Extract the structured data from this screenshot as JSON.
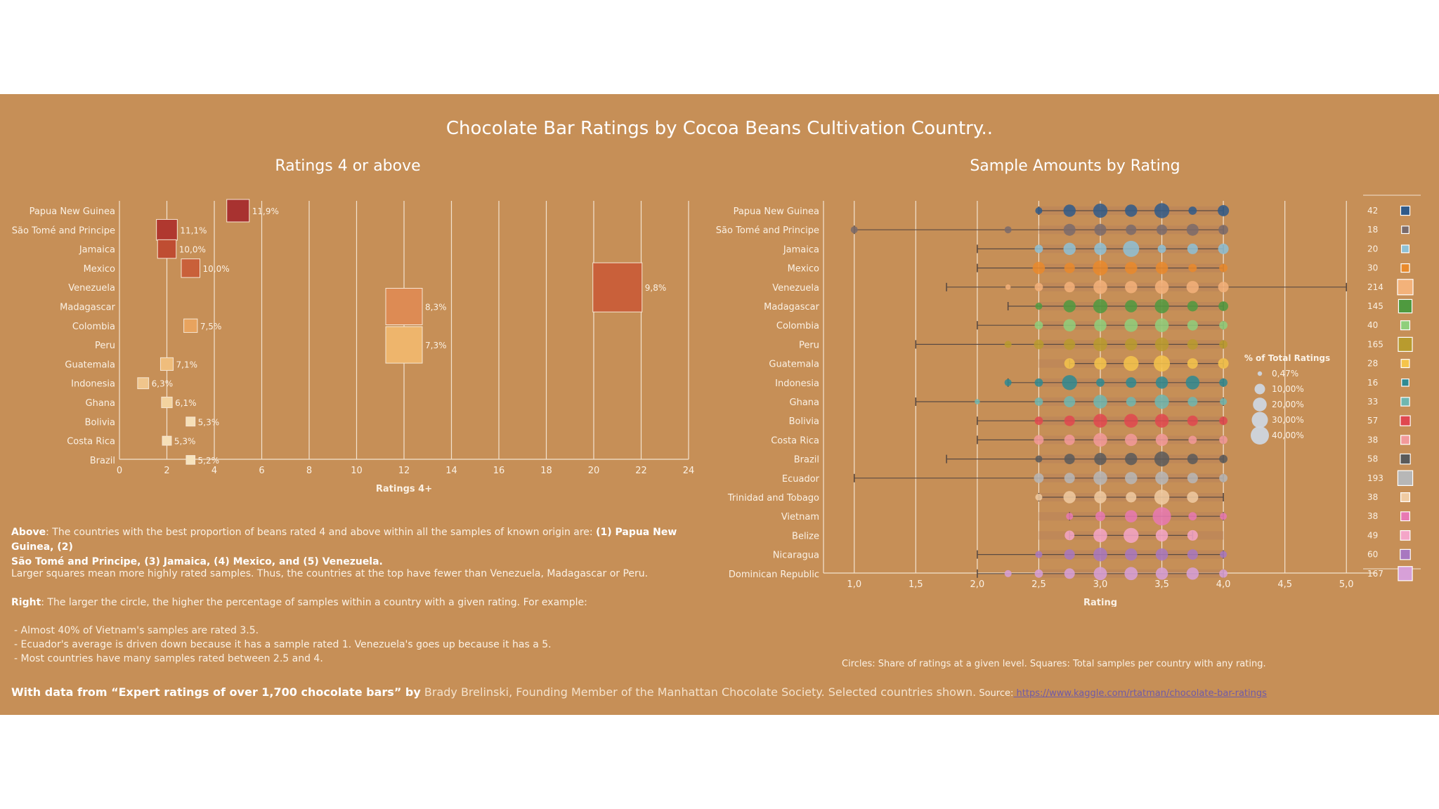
{
  "title": "Chocolate Bar Ratings by Cocoa Beans Cultivation Country..",
  "colors": {
    "background": "#c68f57",
    "grid": "#f3e3d0",
    "text": "#fbf1e4"
  },
  "chart_data": [
    {
      "type": "bar",
      "title": "Ratings 4 or above",
      "xlabel": "Ratings 4+",
      "ylabel": "",
      "xlim": [
        0,
        24
      ],
      "ticks": [
        "0",
        "2",
        "4",
        "6",
        "8",
        "10",
        "12",
        "14",
        "16",
        "18",
        "20",
        "22",
        "24"
      ],
      "grid": true,
      "categories": [
        "Papua New Guinea",
        "São Tomé and Principe",
        "Jamaica",
        "Mexico",
        "Venezuela",
        "Madagascar",
        "Colombia",
        "Peru",
        "Guatemala",
        "Indonesia",
        "Ghana",
        "Bolivia",
        "Costa Rica",
        "Brazil"
      ],
      "values": [
        5,
        2,
        2,
        3,
        21,
        12,
        3,
        12,
        2,
        1,
        2,
        3,
        2,
        3
      ],
      "labels": [
        "11,9%",
        "11,1%",
        "10,0%",
        "10,0%",
        "9,8%",
        "8,3%",
        "7,5%",
        "7,3%",
        "7,1%",
        "6,3%",
        "6,1%",
        "5,3%",
        "5,3%",
        "5,2%"
      ],
      "percent": [
        11.9,
        11.1,
        10.0,
        10.0,
        9.8,
        8.3,
        7.5,
        7.3,
        7.1,
        6.3,
        6.1,
        5.3,
        5.3,
        5.2
      ],
      "colors": [
        "#a83230",
        "#b0382f",
        "#bf4d32",
        "#c9603a",
        "#c9603a",
        "#dd8b54",
        "#e8a35e",
        "#eeb56c",
        "#efbd7c",
        "#f0c58c",
        "#f3d39f",
        "#f6dfb7",
        "#f6dfb7",
        "#f7e3bd"
      ]
    },
    {
      "type": "scatter",
      "title": "Sample Amounts by Rating",
      "xlabel": "Rating",
      "xlim": [
        0.75,
        5.25
      ],
      "ticks": [
        "1,0",
        "1,5",
        "2,0",
        "2,5",
        "3,0",
        "3,5",
        "4,0",
        "4,5",
        "5,0"
      ],
      "tick_values": [
        1.0,
        1.5,
        2.0,
        2.5,
        3.0,
        3.5,
        4.0,
        4.5,
        5.0
      ],
      "grid": true,
      "legend": {
        "position": "right",
        "title": "% of Total Ratings",
        "entries": [
          "0,47%",
          "10,00%",
          "20,00%",
          "30,00%",
          "40,00%"
        ],
        "values": [
          0.47,
          10,
          20,
          30,
          40
        ]
      },
      "caption": "Circles: Share of ratings at a given level. Squares: Total samples per country with any rating.",
      "series": [
        {
          "name": "Papua New Guinea",
          "color": "#2f5a8a",
          "min": 2.5,
          "max": 4.0,
          "total": "42",
          "total_value": 42,
          "points": [
            [
              2.5,
              3
            ],
            [
              2.75,
              15
            ],
            [
              3.0,
              22
            ],
            [
              3.25,
              15
            ],
            [
              3.5,
              25
            ],
            [
              3.75,
              5
            ],
            [
              4.0,
              12
            ]
          ]
        },
        {
          "name": "São Tomé and Principe",
          "color": "#7a6b6b",
          "min": 1.0,
          "max": 4.0,
          "total": "18",
          "total_value": 18,
          "points": [
            [
              1.0,
              3
            ],
            [
              2.25,
              3
            ],
            [
              2.75,
              14
            ],
            [
              3.0,
              14
            ],
            [
              3.25,
              10
            ],
            [
              3.5,
              10
            ],
            [
              3.75,
              14
            ],
            [
              4.0,
              8
            ]
          ]
        },
        {
          "name": "Jamaica",
          "color": "#8ec1d6",
          "min": 2.0,
          "max": 4.0,
          "total": "20",
          "total_value": 20,
          "points": [
            [
              2.5,
              5
            ],
            [
              2.75,
              15
            ],
            [
              3.0,
              15
            ],
            [
              3.25,
              30
            ],
            [
              3.5,
              5
            ],
            [
              3.75,
              10
            ],
            [
              4.0,
              10
            ]
          ]
        },
        {
          "name": "Mexico",
          "color": "#e98a2b",
          "min": 2.0,
          "max": 4.0,
          "total": "30",
          "total_value": 30,
          "points": [
            [
              2.5,
              15
            ],
            [
              2.75,
              10
            ],
            [
              3.0,
              25
            ],
            [
              3.25,
              15
            ],
            [
              3.5,
              15
            ],
            [
              3.75,
              5
            ],
            [
              4.0,
              5
            ]
          ]
        },
        {
          "name": "Venezuela",
          "color": "#f3b27a",
          "min": 1.75,
          "max": 5.0,
          "total": "214",
          "total_value": 214,
          "points": [
            [
              2.25,
              1
            ],
            [
              2.5,
              5
            ],
            [
              2.75,
              10
            ],
            [
              3.0,
              20
            ],
            [
              3.25,
              15
            ],
            [
              3.5,
              20
            ],
            [
              3.75,
              15
            ],
            [
              4.0,
              10
            ]
          ]
        },
        {
          "name": "Madagascar",
          "color": "#4f9a3f",
          "min": 2.25,
          "max": 4.0,
          "total": "145",
          "total_value": 145,
          "points": [
            [
              2.5,
              3
            ],
            [
              2.75,
              15
            ],
            [
              3.0,
              22
            ],
            [
              3.25,
              15
            ],
            [
              3.5,
              22
            ],
            [
              3.75,
              10
            ],
            [
              4.0,
              8
            ]
          ]
        },
        {
          "name": "Colombia",
          "color": "#8fcf7b",
          "min": 2.0,
          "max": 4.0,
          "total": "40",
          "total_value": 40,
          "points": [
            [
              2.5,
              5
            ],
            [
              2.75,
              15
            ],
            [
              3.0,
              15
            ],
            [
              3.25,
              18
            ],
            [
              3.5,
              20
            ],
            [
              3.75,
              10
            ],
            [
              4.0,
              5
            ]
          ]
        },
        {
          "name": "Peru",
          "color": "#b89b2e",
          "min": 1.5,
          "max": 4.0,
          "total": "165",
          "total_value": 165,
          "points": [
            [
              2.25,
              3
            ],
            [
              2.5,
              8
            ],
            [
              2.75,
              12
            ],
            [
              3.0,
              20
            ],
            [
              3.25,
              15
            ],
            [
              3.5,
              20
            ],
            [
              3.75,
              10
            ],
            [
              4.0,
              5
            ]
          ]
        },
        {
          "name": "Guatemala",
          "color": "#f5c44b",
          "min": 2.75,
          "max": 4.0,
          "total": "28",
          "total_value": 28,
          "points": [
            [
              2.75,
              10
            ],
            [
              3.0,
              15
            ],
            [
              3.25,
              25
            ],
            [
              3.5,
              30
            ],
            [
              3.75,
              10
            ],
            [
              4.0,
              10
            ]
          ]
        },
        {
          "name": "Indonesia",
          "color": "#2e8a92",
          "min": 2.25,
          "max": 4.0,
          "total": "16",
          "total_value": 16,
          "points": [
            [
              2.25,
              3
            ],
            [
              2.5,
              5
            ],
            [
              2.75,
              25
            ],
            [
              3.0,
              5
            ],
            [
              3.25,
              10
            ],
            [
              3.5,
              15
            ],
            [
              3.75,
              20
            ],
            [
              4.0,
              5
            ]
          ]
        },
        {
          "name": "Ghana",
          "color": "#6fb7b0",
          "min": 1.5,
          "max": 4.0,
          "total": "33",
          "total_value": 33,
          "points": [
            [
              2.0,
              1
            ],
            [
              2.5,
              5
            ],
            [
              2.75,
              12
            ],
            [
              3.0,
              20
            ],
            [
              3.25,
              8
            ],
            [
              3.5,
              22
            ],
            [
              3.75,
              8
            ],
            [
              4.0,
              3
            ]
          ]
        },
        {
          "name": "Bolivia",
          "color": "#e0484f",
          "min": 2.0,
          "max": 4.0,
          "total": "57",
          "total_value": 57,
          "points": [
            [
              2.5,
              5
            ],
            [
              2.75,
              10
            ],
            [
              3.0,
              20
            ],
            [
              3.25,
              20
            ],
            [
              3.5,
              20
            ],
            [
              3.75,
              10
            ],
            [
              4.0,
              5
            ]
          ]
        },
        {
          "name": "Costa Rica",
          "color": "#f29a9a",
          "min": 2.0,
          "max": 4.0,
          "total": "38",
          "total_value": 38,
          "points": [
            [
              2.5,
              8
            ],
            [
              2.75,
              10
            ],
            [
              3.0,
              20
            ],
            [
              3.25,
              15
            ],
            [
              3.5,
              15
            ],
            [
              3.75,
              5
            ],
            [
              4.0,
              5
            ]
          ]
        },
        {
          "name": "Brazil",
          "color": "#5a5a5a",
          "min": 1.75,
          "max": 4.0,
          "total": "58",
          "total_value": 58,
          "points": [
            [
              2.5,
              3
            ],
            [
              2.75,
              10
            ],
            [
              3.0,
              15
            ],
            [
              3.25,
              15
            ],
            [
              3.5,
              25
            ],
            [
              3.75,
              10
            ],
            [
              4.0,
              5
            ]
          ]
        },
        {
          "name": "Ecuador",
          "color": "#b7b7b7",
          "min": 1.0,
          "max": 4.0,
          "total": "193",
          "total_value": 193,
          "points": [
            [
              2.5,
              8
            ],
            [
              2.75,
              10
            ],
            [
              3.0,
              20
            ],
            [
              3.25,
              15
            ],
            [
              3.5,
              18
            ],
            [
              3.75,
              10
            ],
            [
              4.0,
              5
            ]
          ]
        },
        {
          "name": "Trinidad and Tobago",
          "color": "#f0cba2",
          "min": 2.5,
          "max": 4.0,
          "total": "38",
          "total_value": 38,
          "points": [
            [
              2.5,
              3
            ],
            [
              2.75,
              15
            ],
            [
              3.0,
              15
            ],
            [
              3.25,
              10
            ],
            [
              3.5,
              25
            ],
            [
              3.75,
              12
            ]
          ]
        },
        {
          "name": "Vietnam",
          "color": "#e879b3",
          "min": 2.75,
          "max": 4.0,
          "total": "38",
          "total_value": 38,
          "points": [
            [
              2.75,
              3
            ],
            [
              3.0,
              8
            ],
            [
              3.25,
              15
            ],
            [
              3.5,
              40
            ],
            [
              3.75,
              5
            ],
            [
              4.0,
              3
            ]
          ]
        },
        {
          "name": "Belize",
          "color": "#f4a6c8",
          "min": 2.75,
          "max": 3.75,
          "total": "49",
          "total_value": 49,
          "points": [
            [
              2.75,
              8
            ],
            [
              3.0,
              20
            ],
            [
              3.25,
              25
            ],
            [
              3.5,
              15
            ],
            [
              3.75,
              10
            ]
          ]
        },
        {
          "name": "Nicaragua",
          "color": "#a878c0",
          "min": 2.0,
          "max": 4.0,
          "total": "60",
          "total_value": 60,
          "points": [
            [
              2.5,
              3
            ],
            [
              2.75,
              10
            ],
            [
              3.0,
              20
            ],
            [
              3.25,
              15
            ],
            [
              3.5,
              15
            ],
            [
              3.75,
              10
            ],
            [
              4.0,
              3
            ]
          ]
        },
        {
          "name": "Dominican Republic",
          "color": "#d7a0d8",
          "min": 2.0,
          "max": 4.0,
          "total": "167",
          "total_value": 167,
          "points": [
            [
              2.25,
              3
            ],
            [
              2.5,
              5
            ],
            [
              2.75,
              10
            ],
            [
              3.0,
              18
            ],
            [
              3.25,
              18
            ],
            [
              3.5,
              15
            ],
            [
              3.75,
              15
            ],
            [
              4.0,
              5
            ]
          ]
        }
      ]
    }
  ],
  "notes": {
    "above_label": "Above",
    "above_text": ": The countries with the best proportion of beans rated 4 and above within all the samples of known origin are: ",
    "above_bold1": "(1) Papua New Guinea, (2)",
    "above_bold2": "São Tomé and Principe, (3) Jamaica, (4) Mexico, and (5) Venezuela.",
    "larger": "Larger squares mean more highly rated samples. Thus, the countries at the top have fewer than Venezuela, Madagascar or Peru.",
    "right_label": "Right",
    "right_text": ": The larger the circle, the higher the percentage of samples within a country with a given rating. For example:",
    "bullets": [
      "- Almost 40% of Vietnam's samples are rated 3.5.",
      "- Ecuador's average is driven down because it has a sample rated 1. Venezuela's goes up because it has a 5.",
      "- Most countries have many samples rated between 2.5 and 4."
    ]
  },
  "credit": {
    "bold": "With data from “Expert ratings of over 1,700 chocolate bars” by",
    "muted": " Brady Brelinski, Founding Member of the Manhattan Chocolate Society. Selected countries shown.",
    "source_label": " Source:",
    "link": " https://www.kaggle.com/rtatman/chocolate-bar-ratings"
  }
}
